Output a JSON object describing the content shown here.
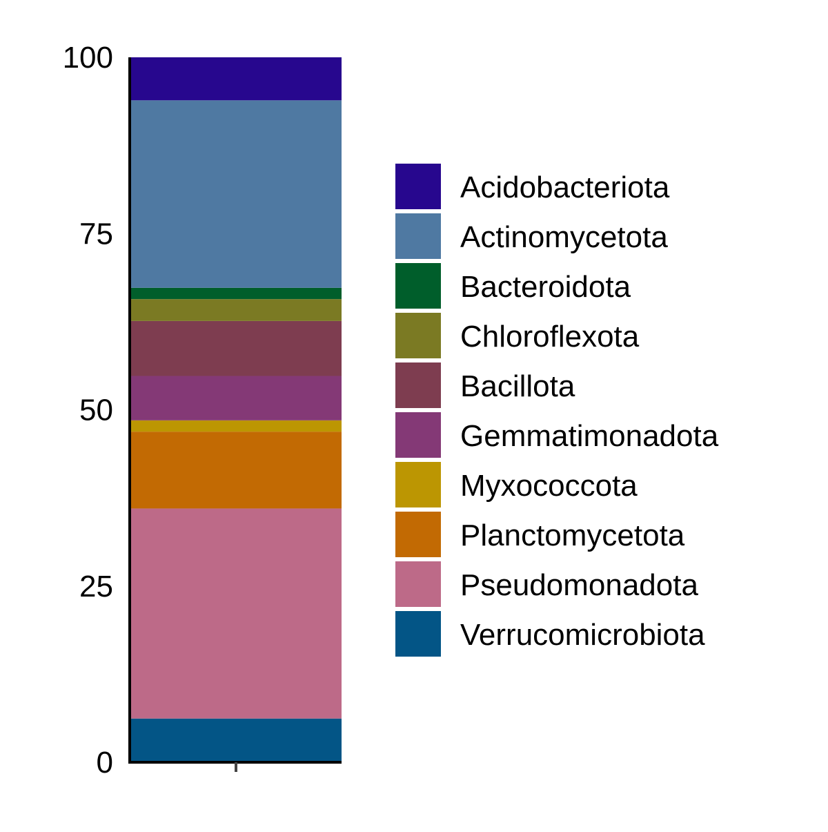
{
  "chart_data": {
    "type": "bar",
    "stacked": true,
    "title": "",
    "xlabel": "",
    "ylabel": "",
    "ylim": [
      0,
      100
    ],
    "yticks": [
      "0",
      "25",
      "50",
      "75",
      "100"
    ],
    "categories": [
      ""
    ],
    "grid": false,
    "legend_position": "right",
    "series": [
      {
        "name": "Verrucomicrobiota",
        "values": [
          6.2
        ],
        "color": "#035586"
      },
      {
        "name": "Pseudomonadota",
        "values": [
          29.8
        ],
        "color": "#BD6A88"
      },
      {
        "name": "Planctomycetota",
        "values": [
          10.9
        ],
        "color": "#C26A03"
      },
      {
        "name": "Myxococcota",
        "values": [
          1.6
        ],
        "color": "#BC9602"
      },
      {
        "name": "Gemmatimonadota",
        "values": [
          6.3
        ],
        "color": "#843976"
      },
      {
        "name": "Bacillota",
        "values": [
          7.8
        ],
        "color": "#7E3D50"
      },
      {
        "name": "Chloroflexota",
        "values": [
          3.1
        ],
        "color": "#7B7A23"
      },
      {
        "name": "Bacteroidota",
        "values": [
          1.6
        ],
        "color": "#005E2B"
      },
      {
        "name": "Actinomycetota",
        "values": [
          26.6
        ],
        "color": "#4F79A2"
      },
      {
        "name": "Acidobacteriota",
        "values": [
          6.1
        ],
        "color": "#27078E"
      }
    ],
    "legend_order": [
      "Acidobacteriota",
      "Actinomycetota",
      "Bacteroidota",
      "Chloroflexota",
      "Bacillota",
      "Gemmatimonadota",
      "Myxococcota",
      "Planctomycetota",
      "Pseudomonadota",
      "Verrucomicrobiota"
    ]
  }
}
